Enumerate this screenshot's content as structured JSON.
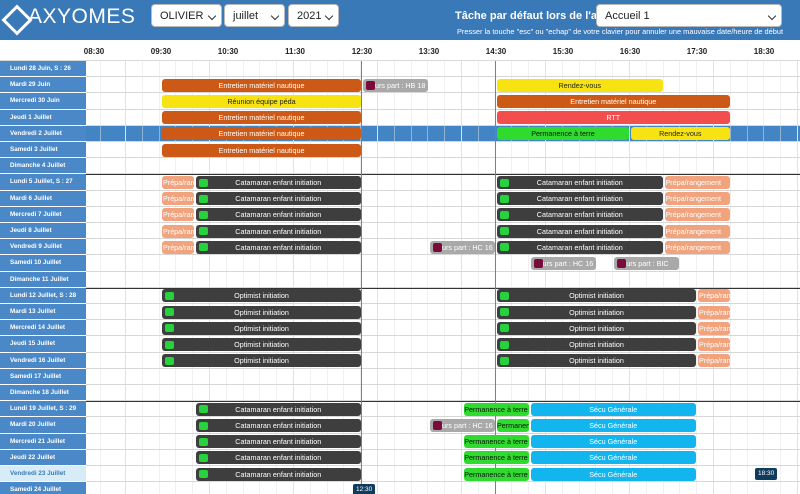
{
  "brand": {
    "name": "AXYOMES",
    "logo_icon": "axyomes-logo-icon"
  },
  "filters": {
    "user": "OLIVIER",
    "month": "juillet",
    "year": "2021"
  },
  "default_task": {
    "label": "Tâche par défaut lors de l'ajout :",
    "value": "Accueil 1",
    "hint": "Presser la touche \"esc\" ou \"echap\" de votre clavier pour annuler une mauvaise date/heure de début"
  },
  "hours": [
    "08:30",
    "09:30",
    "10:30",
    "11:30",
    "12:30",
    "13:30",
    "14:30",
    "15:30",
    "16:30",
    "17:30",
    "18:30"
  ],
  "colors": {
    "header": "#3a79b8",
    "row_label": "#4a88c7",
    "orange": "#cc5a16",
    "yellow": "#f7e312",
    "green": "#2fdb2f",
    "dark": "#3e3e3e",
    "cyan": "#12b5ee",
    "peach": "#f1a37e",
    "red": "#f24e4e"
  },
  "days": [
    "Lundi 28 Juin, S : 26",
    "Mardi 29 Juin",
    "Mercredi 30 Juin",
    "Jeudi 1 Juillet",
    "Vendredi 2 Juillet",
    "Samedi 3 Juillet",
    "Dimanche 4 Juillet",
    "Lundi 5 Juillet, S : 27",
    "Mardi 6 Juillet",
    "Mercredi 7 Juillet",
    "Jeudi 8 Juillet",
    "Vendredi 9 Juillet",
    "Samedi 10 Juillet",
    "Dimanche 11 Juillet",
    "Lundi 12 Juillet, S : 28",
    "Mardi 13 Juillet",
    "Mercredi 14 Juillet",
    "Jeudi 15 Juillet",
    "Vendredi 16 Juillet",
    "Samedi 17 Juillet",
    "Dimanche 18 Juillet",
    "Lundi 19 Juillet, S : 29",
    "Mardi 20 Juillet",
    "Mercredi 21 Juillet",
    "Jeudi 22 Juillet",
    "Vendredi 23 Juillet",
    "Samedi 24 Juillet"
  ],
  "events": [
    {
      "row": 1,
      "start": "09:30",
      "end": "12:30",
      "label": "Entretien matériel nautique",
      "color": "orange"
    },
    {
      "row": 1,
      "start": "12:30",
      "end": "13:30",
      "label": "urs part : HB 18",
      "color": "gray",
      "dot": true
    },
    {
      "row": 1,
      "start": "14:30",
      "end": "17:00",
      "label": "Rendez-vous",
      "color": "yellow"
    },
    {
      "row": 2,
      "start": "09:30",
      "end": "12:30",
      "label": "Réunion équipe péda",
      "color": "yellow"
    },
    {
      "row": 2,
      "start": "14:30",
      "end": "18:00",
      "label": "Entretien matériel nautique",
      "color": "orange"
    },
    {
      "row": 3,
      "start": "09:30",
      "end": "12:30",
      "label": "Entretien matériel nautique",
      "color": "orange"
    },
    {
      "row": 3,
      "start": "14:30",
      "end": "18:00",
      "label": "RTT",
      "color": "red"
    },
    {
      "row": 4,
      "start": "09:30",
      "end": "12:30",
      "label": "Entretien matériel nautique",
      "color": "orange"
    },
    {
      "row": 4,
      "start": "14:30",
      "end": "16:30",
      "label": "Permanence à terre",
      "color": "green"
    },
    {
      "row": 4,
      "start": "16:30",
      "end": "18:00",
      "label": "Rendez-vous",
      "color": "yellow"
    },
    {
      "row": 5,
      "start": "09:30",
      "end": "12:30",
      "label": "Entretien matériel nautique",
      "color": "orange"
    },
    {
      "row": 7,
      "start": "09:30",
      "end": "10:00",
      "label": "Prépa/rangement",
      "color": "peach"
    },
    {
      "row": 7,
      "start": "10:00",
      "end": "12:30",
      "label": "Catamaran enfant initiation",
      "color": "dark",
      "check": true
    },
    {
      "row": 7,
      "start": "14:30",
      "end": "17:00",
      "label": "Catamaran enfant initiation",
      "color": "dark",
      "check": true
    },
    {
      "row": 7,
      "start": "17:00",
      "end": "18:00",
      "label": "Prépa/rangement",
      "color": "peach"
    },
    {
      "row": 8,
      "start": "09:30",
      "end": "10:00",
      "label": "Prépa/rangement",
      "color": "peach"
    },
    {
      "row": 8,
      "start": "10:00",
      "end": "12:30",
      "label": "Catamaran enfant initiation",
      "color": "dark",
      "check": true
    },
    {
      "row": 8,
      "start": "14:30",
      "end": "17:00",
      "label": "Catamaran enfant initiation",
      "color": "dark",
      "check": true
    },
    {
      "row": 8,
      "start": "17:00",
      "end": "18:00",
      "label": "Prépa/rangement",
      "color": "peach"
    },
    {
      "row": 9,
      "start": "09:30",
      "end": "10:00",
      "label": "Prépa/rangement",
      "color": "peach"
    },
    {
      "row": 9,
      "start": "10:00",
      "end": "12:30",
      "label": "Catamaran enfant initiation",
      "color": "dark",
      "check": true
    },
    {
      "row": 9,
      "start": "14:30",
      "end": "17:00",
      "label": "Catamaran enfant initiation",
      "color": "dark",
      "check": true
    },
    {
      "row": 9,
      "start": "17:00",
      "end": "18:00",
      "label": "Prépa/rangement",
      "color": "peach"
    },
    {
      "row": 10,
      "start": "09:30",
      "end": "10:00",
      "label": "Prépa/rangement",
      "color": "peach"
    },
    {
      "row": 10,
      "start": "10:00",
      "end": "12:30",
      "label": "Catamaran enfant initiation",
      "color": "dark",
      "check": true
    },
    {
      "row": 10,
      "start": "14:30",
      "end": "17:00",
      "label": "Catamaran enfant initiation",
      "color": "dark",
      "check": true
    },
    {
      "row": 10,
      "start": "17:00",
      "end": "18:00",
      "label": "Prépa/rangement",
      "color": "peach"
    },
    {
      "row": 11,
      "start": "09:30",
      "end": "10:00",
      "label": "Prépa/rangement",
      "color": "peach"
    },
    {
      "row": 11,
      "start": "10:00",
      "end": "12:30",
      "label": "Catamaran enfant initiation",
      "color": "dark",
      "check": true
    },
    {
      "row": 11,
      "start": "13:30",
      "end": "14:30",
      "label": "urs part : HC 16",
      "color": "gray",
      "dot": true
    },
    {
      "row": 11,
      "start": "14:30",
      "end": "17:00",
      "label": "Catamaran enfant initiation",
      "color": "dark",
      "check": true
    },
    {
      "row": 11,
      "start": "17:00",
      "end": "18:00",
      "label": "Prépa/rangement",
      "color": "peach"
    },
    {
      "row": 12,
      "start": "15:00",
      "end": "16:00",
      "label": "urs part : HC 16",
      "color": "gray",
      "dot": true
    },
    {
      "row": 12,
      "start": "16:15",
      "end": "17:15",
      "label": "urs part : BIC",
      "color": "gray",
      "dot": true
    },
    {
      "row": 14,
      "start": "09:30",
      "end": "12:30",
      "label": "Optimist initiation",
      "color": "dark",
      "check": true
    },
    {
      "row": 14,
      "start": "14:30",
      "end": "17:30",
      "label": "Optimist initiation",
      "color": "dark",
      "check": true
    },
    {
      "row": 14,
      "start": "17:30",
      "end": "18:00",
      "label": "Prépa/rangement",
      "color": "peach"
    },
    {
      "row": 15,
      "start": "09:30",
      "end": "12:30",
      "label": "Optimist initiation",
      "color": "dark",
      "check": true
    },
    {
      "row": 15,
      "start": "14:30",
      "end": "17:30",
      "label": "Optimist initiation",
      "color": "dark",
      "check": true
    },
    {
      "row": 15,
      "start": "17:30",
      "end": "18:00",
      "label": "Prépa/rangement",
      "color": "peach"
    },
    {
      "row": 16,
      "start": "09:30",
      "end": "12:30",
      "label": "Optimist initiation",
      "color": "dark",
      "check": true
    },
    {
      "row": 16,
      "start": "14:30",
      "end": "17:30",
      "label": "Optimist initiation",
      "color": "dark",
      "check": true
    },
    {
      "row": 16,
      "start": "17:30",
      "end": "18:00",
      "label": "Prépa/rangement",
      "color": "peach"
    },
    {
      "row": 17,
      "start": "09:30",
      "end": "12:30",
      "label": "Optimist initiation",
      "color": "dark",
      "check": true
    },
    {
      "row": 17,
      "start": "14:30",
      "end": "17:30",
      "label": "Optimist initiation",
      "color": "dark",
      "check": true
    },
    {
      "row": 17,
      "start": "17:30",
      "end": "18:00",
      "label": "Prépa/rangement",
      "color": "peach"
    },
    {
      "row": 18,
      "start": "09:30",
      "end": "12:30",
      "label": "Optimist initiation",
      "color": "dark",
      "check": true
    },
    {
      "row": 18,
      "start": "14:30",
      "end": "17:30",
      "label": "Optimist initiation",
      "color": "dark",
      "check": true
    },
    {
      "row": 18,
      "start": "17:30",
      "end": "18:00",
      "label": "Prépa/rangement",
      "color": "peach"
    },
    {
      "row": 21,
      "start": "10:00",
      "end": "12:30",
      "label": "Catamaran enfant initiation",
      "color": "dark",
      "check": true
    },
    {
      "row": 21,
      "start": "14:00",
      "end": "15:00",
      "label": "Permanence à terre",
      "color": "green"
    },
    {
      "row": 21,
      "start": "15:00",
      "end": "17:30",
      "label": "Sécu Générale",
      "color": "cyan"
    },
    {
      "row": 22,
      "start": "10:00",
      "end": "12:30",
      "label": "Catamaran enfant initiation",
      "color": "dark",
      "check": true
    },
    {
      "row": 22,
      "start": "13:30",
      "end": "14:30",
      "label": "urs part : HC 16",
      "color": "gray",
      "dot": true
    },
    {
      "row": 22,
      "start": "14:30",
      "end": "15:00",
      "label": "Permanence à terre",
      "color": "green"
    },
    {
      "row": 22,
      "start": "15:00",
      "end": "17:30",
      "label": "Sécu Générale",
      "color": "cyan"
    },
    {
      "row": 23,
      "start": "10:00",
      "end": "12:30",
      "label": "Catamaran enfant initiation",
      "color": "dark",
      "check": true
    },
    {
      "row": 23,
      "start": "14:00",
      "end": "15:00",
      "label": "Permanence à terre",
      "color": "green"
    },
    {
      "row": 23,
      "start": "15:00",
      "end": "17:30",
      "label": "Sécu Générale",
      "color": "cyan"
    },
    {
      "row": 24,
      "start": "10:00",
      "end": "12:30",
      "label": "Catamaran enfant initiation",
      "color": "dark",
      "check": true
    },
    {
      "row": 24,
      "start": "14:00",
      "end": "15:00",
      "label": "Permanence à terre",
      "color": "green"
    },
    {
      "row": 24,
      "start": "15:00",
      "end": "17:30",
      "label": "Sécu Générale",
      "color": "cyan"
    },
    {
      "row": 25,
      "start": "10:00",
      "end": "12:30",
      "label": "Catamaran enfant initiation",
      "color": "dark",
      "check": true
    },
    {
      "row": 25,
      "start": "14:00",
      "end": "15:00",
      "label": "Permanence à terre",
      "color": "green"
    },
    {
      "row": 25,
      "start": "15:00",
      "end": "17:30",
      "label": "Sécu Générale",
      "color": "cyan"
    }
  ],
  "highlight_row": 4,
  "today_row": 25,
  "weekstart_rows": [
    7,
    14,
    21
  ],
  "time_tags": [
    {
      "row": 25,
      "time": "18:30",
      "label": "18:30"
    },
    {
      "row": 26,
      "time": "12:30",
      "label": "12:30"
    }
  ]
}
